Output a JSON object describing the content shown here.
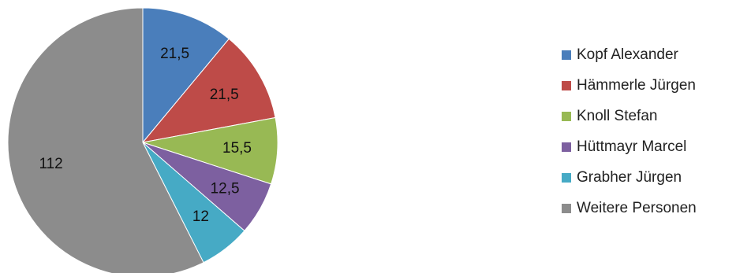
{
  "chart_data": {
    "type": "pie",
    "categories": [
      "Kopf Alexander",
      "Hämmerle Jürgen",
      "Knoll Stefan",
      "Hüttmayr Marcel",
      "Grabher Jürgen",
      "Weitere Personen"
    ],
    "values": [
      21.5,
      21.5,
      15.5,
      12.5,
      12,
      112
    ],
    "data_labels": [
      "21,5",
      "21,5",
      "15,5",
      "12,5",
      "12",
      "112"
    ],
    "colors": [
      "#4A7EBB",
      "#BE4B48",
      "#98B954",
      "#7D60A0",
      "#46AAC5",
      "#8C8C8C"
    ],
    "legend_position": "right",
    "start_angle": "12 o'clock",
    "direction": "clockwise"
  }
}
